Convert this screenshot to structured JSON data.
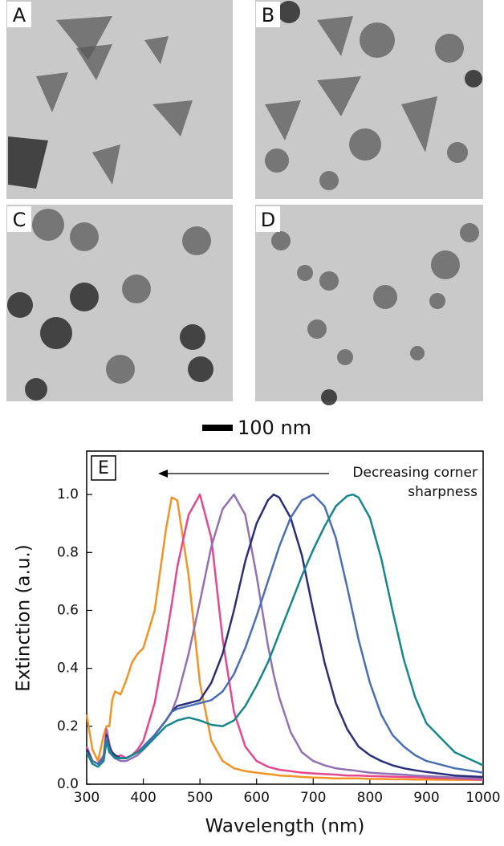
{
  "panels": [
    {
      "label": "A"
    },
    {
      "label": "B"
    },
    {
      "label": "C"
    },
    {
      "label": "D"
    }
  ],
  "scale_bar": "100 nm",
  "chart_data": {
    "type": "line",
    "panel_label": "E",
    "annotation": [
      "Decreasing corner",
      "sharpness"
    ],
    "xlabel": "Wavelength (nm)",
    "ylabel": "Extinction (a.u.)",
    "xlim": [
      300,
      1000
    ],
    "ylim": [
      0,
      1.15
    ],
    "xticks": [
      300,
      400,
      500,
      600,
      700,
      800,
      900,
      1000
    ],
    "yticks": [
      {
        "value": 0,
        "label": "0.0"
      },
      0.2,
      0.4,
      0.6,
      0.8,
      {
        "value": 1,
        "label": "1.0"
      }
    ],
    "x": [
      300,
      310,
      320,
      330,
      335,
      340,
      345,
      350,
      360,
      370,
      380,
      390,
      400,
      420,
      440,
      450,
      460,
      480,
      500,
      520,
      540,
      560,
      580,
      600,
      620,
      630,
      640,
      660,
      680,
      700,
      720,
      740,
      760,
      770,
      780,
      800,
      820,
      840,
      860,
      880,
      900,
      950,
      1000
    ],
    "series": [
      {
        "color": "#f39325",
        "values": [
          0.24,
          0.12,
          0.08,
          0.17,
          0.2,
          0.2,
          0.29,
          0.32,
          0.31,
          0.36,
          0.42,
          0.45,
          0.47,
          0.6,
          0.88,
          0.99,
          0.98,
          0.72,
          0.35,
          0.15,
          0.08,
          0.055,
          0.045,
          0.04,
          0.035,
          0.033,
          0.03,
          0.028,
          0.025,
          0.023,
          0.022,
          0.02,
          0.02,
          0.02,
          0.02,
          0.018,
          0.018,
          0.017,
          0.017,
          0.016,
          0.016,
          0.015,
          0.015
        ]
      },
      {
        "color": "#e5488e",
        "values": [
          0.13,
          0.08,
          0.07,
          0.1,
          0.19,
          0.14,
          0.1,
          0.09,
          0.1,
          0.09,
          0.1,
          0.12,
          0.15,
          0.28,
          0.5,
          0.62,
          0.75,
          0.93,
          1.0,
          0.85,
          0.5,
          0.25,
          0.13,
          0.08,
          0.06,
          0.055,
          0.05,
          0.045,
          0.04,
          0.037,
          0.035,
          0.033,
          0.03,
          0.03,
          0.03,
          0.028,
          0.027,
          0.026,
          0.025,
          0.024,
          0.023,
          0.02,
          0.015
        ]
      },
      {
        "color": "#9271b5",
        "values": [
          0.12,
          0.08,
          0.07,
          0.09,
          0.18,
          0.13,
          0.1,
          0.09,
          0.08,
          0.08,
          0.09,
          0.1,
          0.12,
          0.17,
          0.22,
          0.25,
          0.3,
          0.45,
          0.63,
          0.82,
          0.95,
          1.0,
          0.93,
          0.72,
          0.48,
          0.38,
          0.3,
          0.18,
          0.11,
          0.08,
          0.065,
          0.055,
          0.05,
          0.048,
          0.045,
          0.04,
          0.037,
          0.035,
          0.033,
          0.03,
          0.028,
          0.023,
          0.02
        ]
      },
      {
        "color": "#2b2f7a",
        "values": [
          0.12,
          0.08,
          0.07,
          0.09,
          0.17,
          0.13,
          0.11,
          0.1,
          0.09,
          0.09,
          0.1,
          0.11,
          0.13,
          0.17,
          0.22,
          0.25,
          0.27,
          0.28,
          0.29,
          0.35,
          0.45,
          0.6,
          0.77,
          0.9,
          0.98,
          1.0,
          0.99,
          0.92,
          0.79,
          0.6,
          0.42,
          0.28,
          0.19,
          0.16,
          0.13,
          0.1,
          0.08,
          0.065,
          0.055,
          0.048,
          0.042,
          0.03,
          0.025
        ]
      },
      {
        "color": "#4a6fb4",
        "values": [
          0.11,
          0.08,
          0.07,
          0.09,
          0.16,
          0.12,
          0.1,
          0.09,
          0.09,
          0.09,
          0.1,
          0.11,
          0.13,
          0.17,
          0.22,
          0.25,
          0.26,
          0.27,
          0.28,
          0.29,
          0.32,
          0.38,
          0.47,
          0.58,
          0.7,
          0.76,
          0.82,
          0.92,
          0.98,
          1.0,
          0.96,
          0.85,
          0.68,
          0.59,
          0.5,
          0.35,
          0.24,
          0.17,
          0.13,
          0.1,
          0.08,
          0.055,
          0.04
        ]
      },
      {
        "color": "#17878c",
        "values": [
          0.11,
          0.07,
          0.06,
          0.08,
          0.15,
          0.11,
          0.1,
          0.09,
          0.09,
          0.09,
          0.1,
          0.11,
          0.12,
          0.16,
          0.2,
          0.21,
          0.22,
          0.23,
          0.22,
          0.205,
          0.2,
          0.22,
          0.27,
          0.34,
          0.42,
          0.47,
          0.52,
          0.62,
          0.72,
          0.81,
          0.89,
          0.96,
          0.995,
          1.0,
          0.99,
          0.92,
          0.78,
          0.6,
          0.43,
          0.3,
          0.21,
          0.11,
          0.065
        ]
      }
    ]
  }
}
